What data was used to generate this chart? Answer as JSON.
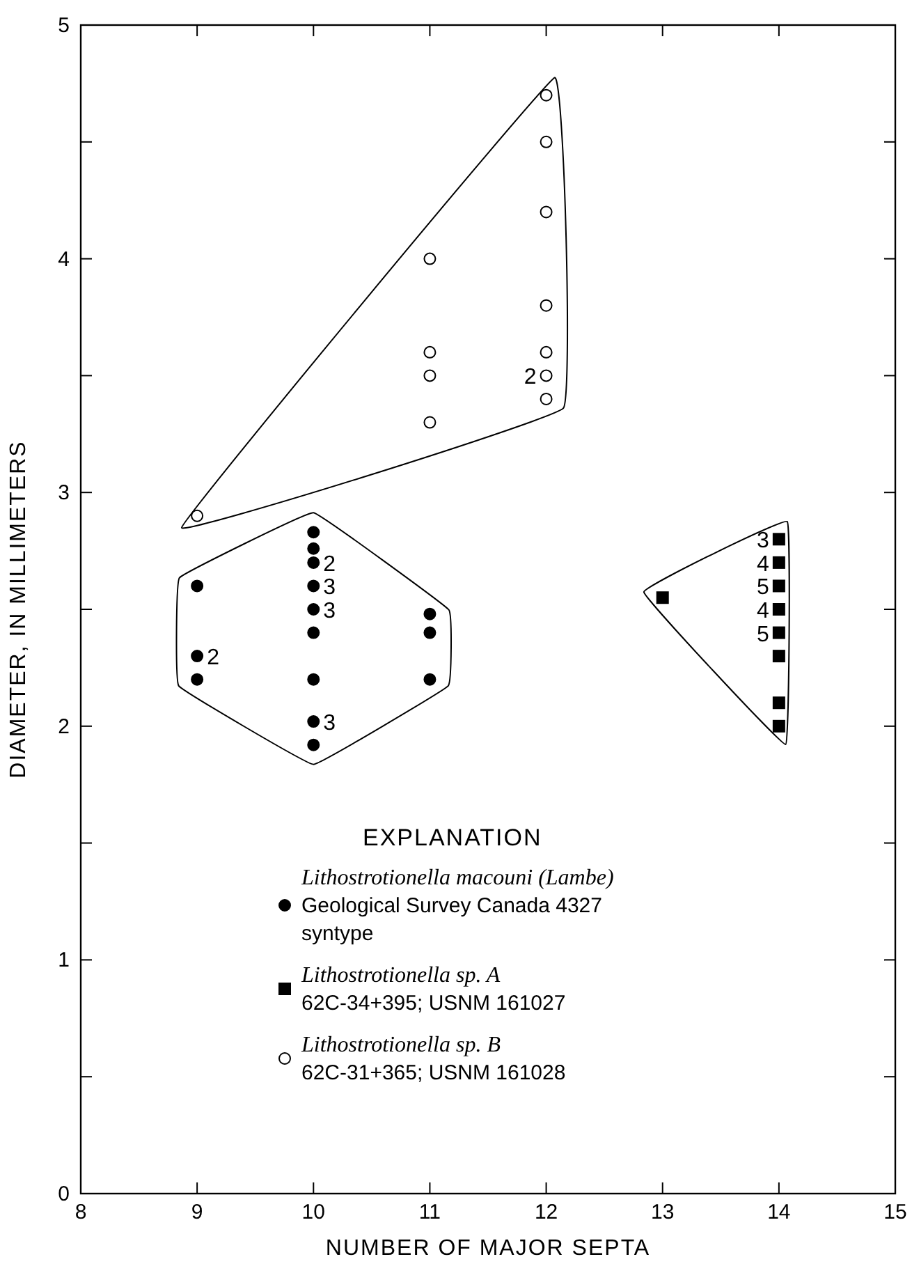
{
  "chart_data": {
    "type": "scatter",
    "xlabel": "NUMBER OF MAJOR SEPTA",
    "ylabel": "DIAMETER, IN MILLIMETERS",
    "legend_title": "EXPLANATION",
    "xlim": [
      8,
      15
    ],
    "xticks": [
      8,
      9,
      10,
      11,
      12,
      13,
      14,
      15
    ],
    "ylim": [
      0,
      5
    ],
    "yticks": [
      0,
      {
        "value": 0.5,
        "label": null
      },
      1,
      {
        "value": 1.5,
        "label": null
      },
      2,
      {
        "value": 2.5,
        "label": null
      },
      3,
      {
        "value": 3.5,
        "label": null
      },
      4,
      {
        "value": 4.5,
        "label": null
      },
      5
    ],
    "grid": false,
    "legend": "bottom",
    "series": [
      {
        "name": "Lithostrotionella macouni (Lambe)\nGeological Survey Canada 4327\nsyntype",
        "color": "#000000",
        "marker": "circle",
        "x": [
          9,
          9,
          9,
          10,
          10,
          10,
          10,
          10,
          10,
          10,
          10,
          10,
          11,
          11,
          11
        ],
        "values": [
          2.6,
          2.3,
          2.2,
          2.83,
          2.76,
          2.7,
          2.6,
          2.5,
          2.4,
          2.2,
          2.02,
          1.92,
          2.48,
          2.4,
          2.2
        ]
      },
      {
        "name": "Lithostrotionella sp. A\n62C-34+395; USNM 161027",
        "color": "#000000",
        "marker": "square",
        "x": [
          13,
          14,
          14,
          14,
          14,
          14,
          14,
          14,
          14
        ],
        "values": [
          2.55,
          2.8,
          2.7,
          2.6,
          2.5,
          2.4,
          2.3,
          2.1,
          2.0
        ]
      },
      {
        "name": "Lithostrotionella sp. B\n62C-31+365; USNM 161028",
        "color": "#ffffff",
        "marker": "circle",
        "x": [
          9,
          11,
          11,
          11,
          11,
          12,
          12,
          12,
          12,
          12,
          12,
          12
        ],
        "values": [
          2.9,
          4.0,
          3.6,
          3.5,
          3.3,
          4.7,
          4.5,
          4.2,
          3.8,
          3.6,
          3.5,
          3.4
        ]
      }
    ],
    "annotations": [
      {
        "text": "2",
        "x": 9,
        "y": 2.3
      },
      {
        "text": "2",
        "x": 10,
        "y": 2.7
      },
      {
        "text": "3",
        "x": 10,
        "y": 2.6
      },
      {
        "text": "3",
        "x": 10,
        "y": 2.5
      },
      {
        "text": "3",
        "x": 10,
        "y": 2.02
      },
      {
        "text": "3",
        "x": 14,
        "y": 2.8
      },
      {
        "text": "4",
        "x": 14,
        "y": 2.7
      },
      {
        "text": "5",
        "x": 14,
        "y": 2.6
      },
      {
        "text": "4",
        "x": 14,
        "y": 2.5
      },
      {
        "text": "5",
        "x": 14,
        "y": 2.4
      },
      {
        "text": "2",
        "x": 12,
        "y": 3.5
      }
    ]
  }
}
